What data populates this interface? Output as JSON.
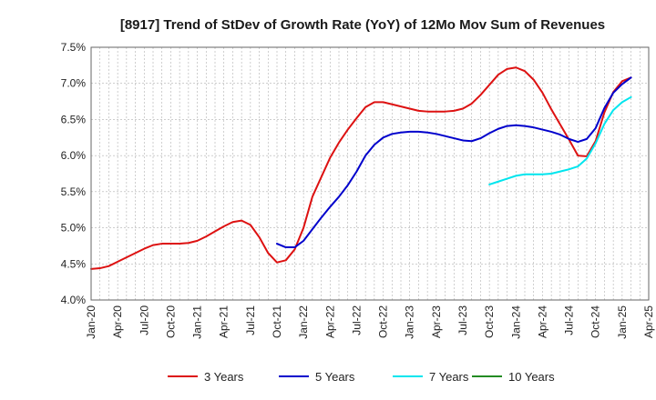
{
  "chart_data": {
    "type": "line",
    "title": "[8917]  Trend of StDev of Growth Rate (YoY) of 12Mo Mov Sum of Revenues",
    "xlabel": "",
    "ylabel": "",
    "ylim": [
      4.0,
      7.5
    ],
    "yticks": [
      "4.0%",
      "4.5%",
      "5.0%",
      "5.5%",
      "6.0%",
      "6.5%",
      "7.0%",
      "7.5%"
    ],
    "ytick_values": [
      4.0,
      4.5,
      5.0,
      5.5,
      6.0,
      6.5,
      7.0,
      7.5
    ],
    "xticks": [
      "Jan-20",
      "Apr-20",
      "Jul-20",
      "Oct-20",
      "Jan-21",
      "Apr-21",
      "Jul-21",
      "Oct-21",
      "Jan-22",
      "Apr-22",
      "Jul-22",
      "Oct-22",
      "Jan-23",
      "Apr-23",
      "Jul-23",
      "Oct-23",
      "Jan-24",
      "Apr-24",
      "Jul-24",
      "Oct-24",
      "Jan-25",
      "Apr-25"
    ],
    "grid": true,
    "legend_position": "bottom",
    "series": [
      {
        "name": "3 Years",
        "color": "#dd1111",
        "start_month_index": 0,
        "values": [
          4.43,
          4.44,
          4.47,
          4.53,
          4.59,
          4.65,
          4.71,
          4.76,
          4.78,
          4.78,
          4.78,
          4.79,
          4.82,
          4.88,
          4.95,
          5.02,
          5.08,
          5.1,
          5.04,
          4.87,
          4.65,
          4.52,
          4.55,
          4.7,
          5.0,
          5.43,
          5.7,
          5.97,
          6.18,
          6.36,
          6.52,
          6.67,
          6.74,
          6.74,
          6.71,
          6.68,
          6.65,
          6.62,
          6.61,
          6.61,
          6.61,
          6.62,
          6.65,
          6.72,
          6.84,
          6.98,
          7.12,
          7.2,
          7.22,
          7.17,
          7.05,
          6.87,
          6.64,
          6.43,
          6.22,
          6.0,
          5.99,
          6.2,
          6.6,
          6.88,
          7.03,
          7.08
        ]
      },
      {
        "name": "5 Years",
        "color": "#0000cc",
        "start_month_index": 21,
        "values": [
          4.78,
          4.73,
          4.73,
          4.82,
          4.98,
          5.14,
          5.29,
          5.43,
          5.59,
          5.78,
          6.0,
          6.15,
          6.25,
          6.3,
          6.32,
          6.33,
          6.33,
          6.32,
          6.3,
          6.27,
          6.24,
          6.21,
          6.2,
          6.24,
          6.31,
          6.37,
          6.41,
          6.42,
          6.41,
          6.39,
          6.36,
          6.33,
          6.29,
          6.23,
          6.19,
          6.23,
          6.38,
          6.66,
          6.87,
          6.99,
          7.08
        ]
      },
      {
        "name": "7 Years",
        "color": "#00e5ee",
        "start_month_index": 45,
        "values": [
          5.6,
          5.64,
          5.68,
          5.72,
          5.74,
          5.74,
          5.74,
          5.75,
          5.78,
          5.81,
          5.85,
          5.96,
          6.17,
          6.44,
          6.63,
          6.74,
          6.81
        ]
      },
      {
        "name": "10 Years",
        "color": "#228b22",
        "start_month_index": null,
        "values": []
      }
    ]
  }
}
